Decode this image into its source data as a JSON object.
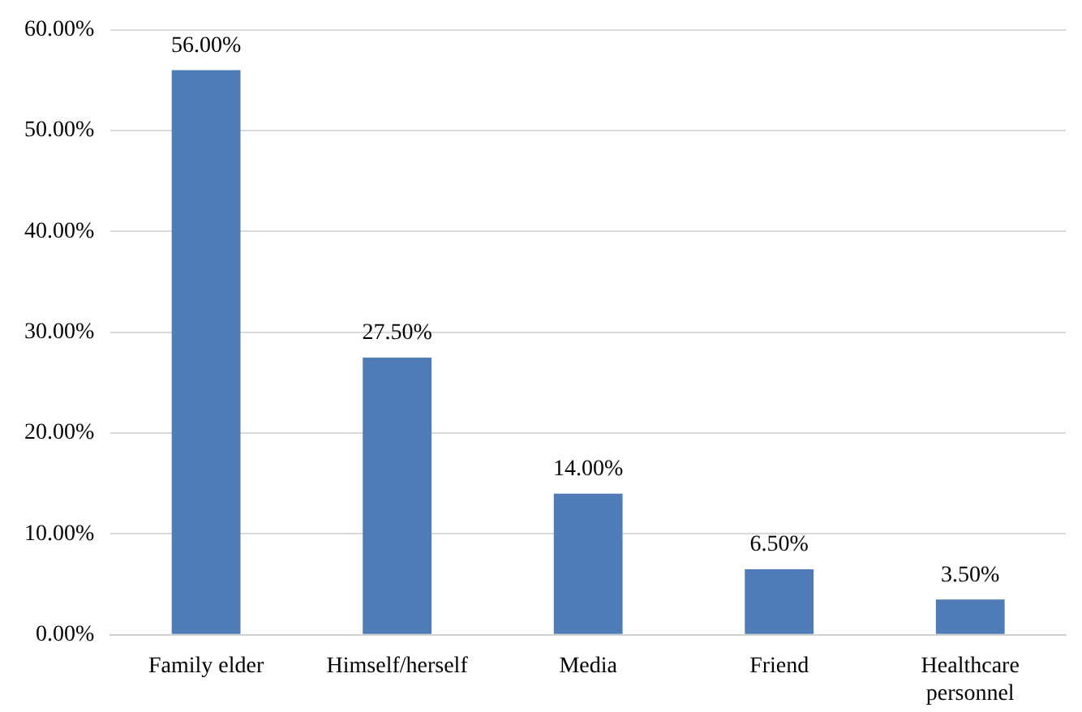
{
  "chart_data": {
    "type": "bar",
    "categories": [
      "Family elder",
      "Himself/herself",
      "Media",
      "Friend",
      "Healthcare personnel"
    ],
    "values": [
      56.0,
      27.5,
      14.0,
      6.5,
      3.5
    ],
    "value_labels": [
      "56.00%",
      "27.50%",
      "14.00%",
      "6.50%",
      "3.50%"
    ],
    "color": "#4f7cb6",
    "ylim": [
      0,
      60
    ],
    "yticks": [
      {
        "value": 0,
        "label": "0.00%"
      },
      {
        "value": 10,
        "label": "10.00%"
      },
      {
        "value": 20,
        "label": "20.00%"
      },
      {
        "value": 30,
        "label": "30.00%"
      },
      {
        "value": 40,
        "label": "40.00%"
      },
      {
        "value": 50,
        "label": "50.00%"
      },
      {
        "value": 60,
        "label": "60.00%"
      }
    ],
    "grid": "y"
  }
}
